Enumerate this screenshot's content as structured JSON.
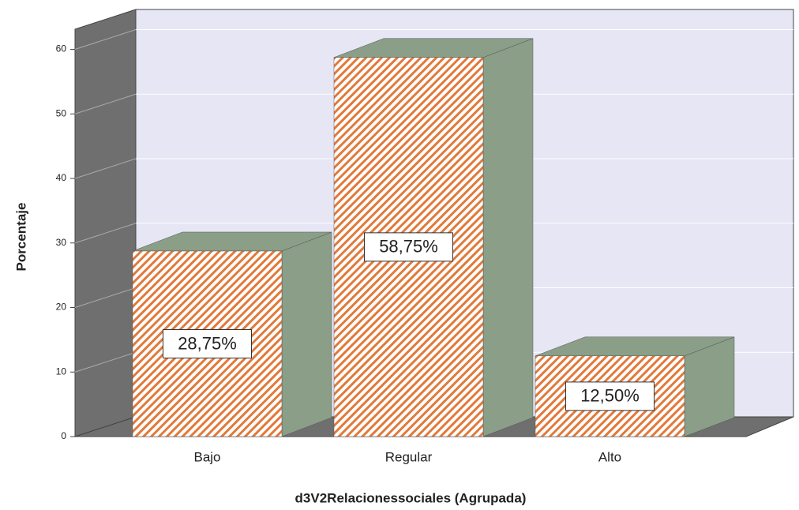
{
  "chart_data": {
    "type": "bar3d",
    "categories": [
      "Bajo",
      "Regular",
      "Alto"
    ],
    "values": [
      28.75,
      58.75,
      12.5
    ],
    "value_labels": [
      "28,75%",
      "58,75%",
      "12,50%"
    ],
    "color": "#e2793a",
    "side_color": "#8a9e88",
    "xlabel": "d3V2Relacionessociales (Agrupada)",
    "ylabel": "Porcentaje",
    "ylim": [
      0,
      63
    ],
    "yticks": [
      0,
      10,
      20,
      30,
      40,
      50,
      60
    ],
    "grid": true
  }
}
